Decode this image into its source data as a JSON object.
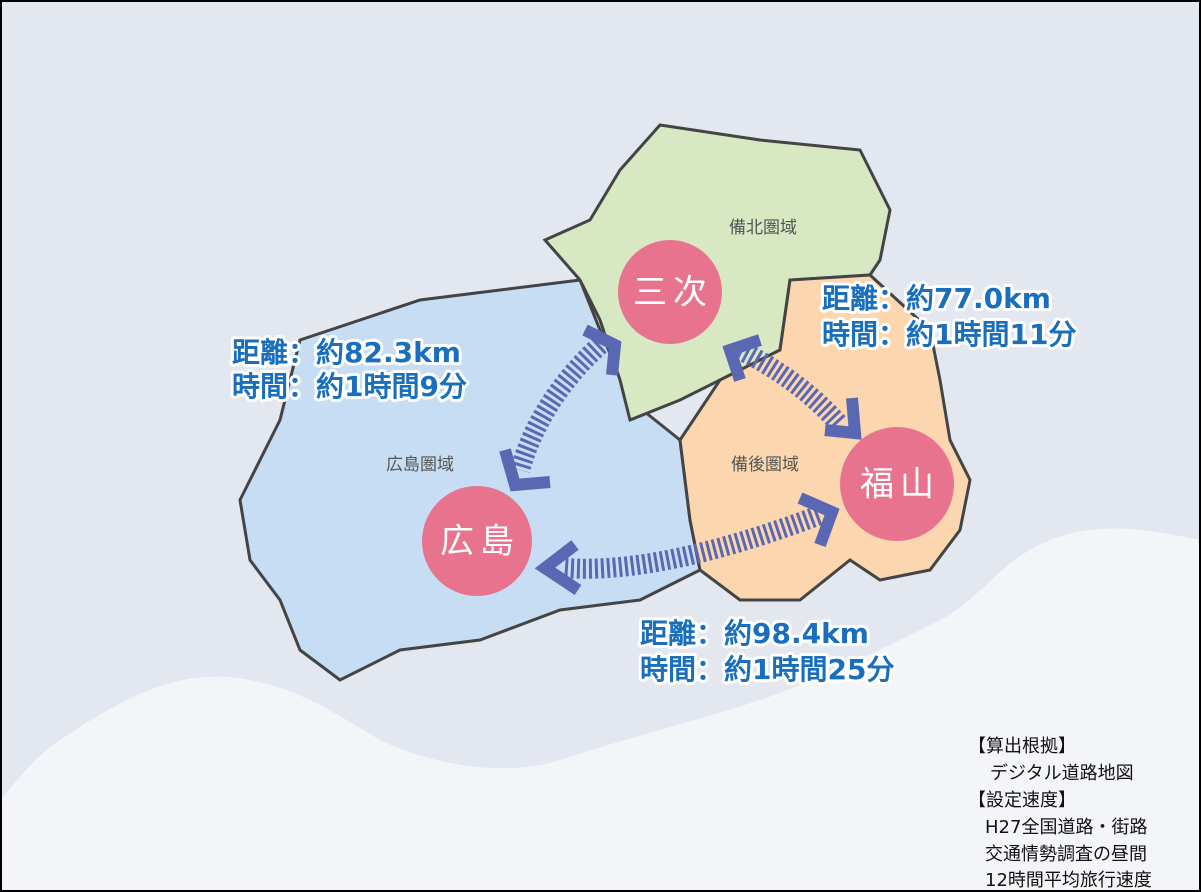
{
  "regions": [
    {
      "label": "備北圏域"
    },
    {
      "label": "広島圏域"
    },
    {
      "label": "備後圏域"
    }
  ],
  "cities": [
    {
      "label": "三次"
    },
    {
      "label": "広島"
    },
    {
      "label": "福山"
    }
  ],
  "routes": [
    {
      "distance": "距離：約82.3km",
      "time": "時間：約1時間9分"
    },
    {
      "distance": "距離：約77.0km",
      "time": "時間：約1時間11分"
    },
    {
      "distance": "距離：約98.4km",
      "time": "時間：約1時間25分"
    }
  ],
  "note": {
    "lines": [
      "【算出根拠】",
      "デジタル道路地図",
      "【設定速度】",
      "H27全国道路・街路",
      "交通情勢調査の昼間",
      "12時間平均旅行速度"
    ]
  }
}
